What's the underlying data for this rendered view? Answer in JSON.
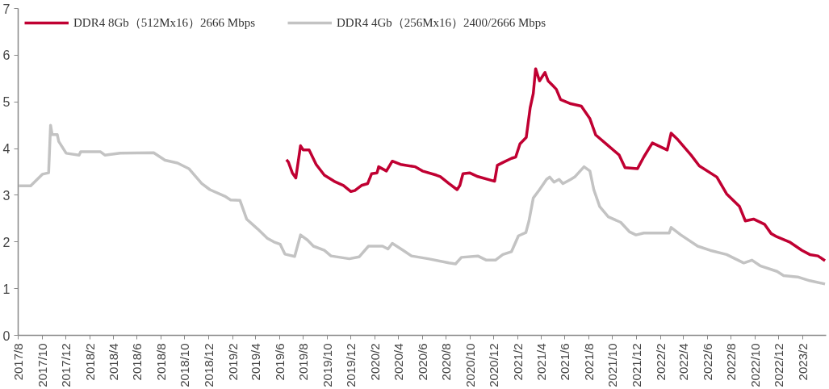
{
  "chart_data": {
    "type": "line",
    "legend": "top",
    "xlim": [
      "2017-08-01",
      "2023-04-01"
    ],
    "ylim": [
      0,
      7
    ],
    "yticks": [
      0,
      1,
      2,
      3,
      4,
      5,
      6,
      7
    ],
    "xticks": [
      {
        "value": "2017-08",
        "label": "2017/8"
      },
      {
        "value": "2017-10",
        "label": "2017/10"
      },
      {
        "value": "2017-12",
        "label": "2017/12"
      },
      {
        "value": "2018-02",
        "label": "2018/2"
      },
      {
        "value": "2018-04",
        "label": "2018/4"
      },
      {
        "value": "2018-06",
        "label": "2018/6"
      },
      {
        "value": "2018-08",
        "label": "2018/8"
      },
      {
        "value": "2018-10",
        "label": "2018/10"
      },
      {
        "value": "2018-12",
        "label": "2018/12"
      },
      {
        "value": "2019-02",
        "label": "2019/2"
      },
      {
        "value": "2019-04",
        "label": "2019/4"
      },
      {
        "value": "2019-06",
        "label": "2019/6"
      },
      {
        "value": "2019-08",
        "label": "2019/8"
      },
      {
        "value": "2019-10",
        "label": "2019/10"
      },
      {
        "value": "2019-12",
        "label": "2019/12"
      },
      {
        "value": "2020-02",
        "label": "2020/2"
      },
      {
        "value": "2020-04",
        "label": "2020/4"
      },
      {
        "value": "2020-06",
        "label": "2020/6"
      },
      {
        "value": "2020-08",
        "label": "2020/8"
      },
      {
        "value": "2020-10",
        "label": "2020/10"
      },
      {
        "value": "2020-12",
        "label": "2020/12"
      },
      {
        "value": "2021-02",
        "label": "2021/2"
      },
      {
        "value": "2021-04",
        "label": "2021/4"
      },
      {
        "value": "2021-06",
        "label": "2021/6"
      },
      {
        "value": "2021-08",
        "label": "2021/8"
      },
      {
        "value": "2021-10",
        "label": "2021/10"
      },
      {
        "value": "2021-12",
        "label": "2021/12"
      },
      {
        "value": "2022-02",
        "label": "2022/2"
      },
      {
        "value": "2022-04",
        "label": "2022/4"
      },
      {
        "value": "2022-06",
        "label": "2022/6"
      },
      {
        "value": "2022-08",
        "label": "2022/8"
      },
      {
        "value": "2022-10",
        "label": "2022/10"
      },
      {
        "value": "2022-12",
        "label": "2022/12"
      },
      {
        "value": "2023-02",
        "label": "2023/2"
      }
    ],
    "series": [
      {
        "name": "DDR4 8Gb（512Mx16）2666 Mbps",
        "color": "#c00032",
        "x": [
          "2019-06-19",
          "2019-06-24",
          "2019-07-04",
          "2019-07-13",
          "2019-07-25",
          "2019-08-01",
          "2019-08-16",
          "2019-09-03",
          "2019-09-24",
          "2019-10-19",
          "2019-11-12",
          "2019-12-01",
          "2019-12-11",
          "2019-12-28",
          "2020-01-13",
          "2020-01-23",
          "2020-02-06",
          "2020-02-10",
          "2020-03-01",
          "2020-03-16",
          "2020-04-06",
          "2020-05-14",
          "2020-06-01",
          "2020-07-07",
          "2020-07-17",
          "2020-08-08",
          "2020-08-29",
          "2020-09-05",
          "2020-09-13",
          "2020-09-30",
          "2020-10-21",
          "2020-12-03",
          "2020-12-10",
          "2020-12-24",
          "2021-01-15",
          "2021-01-26",
          "2021-02-06",
          "2021-02-22",
          "2021-03-04",
          "2021-03-12",
          "2021-03-18",
          "2021-03-28",
          "2021-04-11",
          "2021-04-19",
          "2021-05-02",
          "2021-05-10",
          "2021-05-21",
          "2021-06-16",
          "2021-07-13",
          "2021-08-04",
          "2021-08-19",
          "2021-09-16",
          "2021-10-18",
          "2021-11-02",
          "2021-12-04",
          "2021-12-20",
          "2022-01-11",
          "2022-02-18",
          "2022-02-28",
          "2022-03-15",
          "2022-04-20",
          "2022-05-11",
          "2022-06-25",
          "2022-07-20",
          "2022-08-22",
          "2022-09-06",
          "2022-09-27",
          "2022-10-25",
          "2022-11-11",
          "2022-11-26",
          "2022-12-28",
          "2023-01-29",
          "2023-02-18",
          "2023-03-11",
          "2023-03-29"
        ],
        "values": [
          3.76,
          3.71,
          3.48,
          3.37,
          4.06,
          3.97,
          3.97,
          3.66,
          3.43,
          3.3,
          3.21,
          3.08,
          3.1,
          3.21,
          3.25,
          3.46,
          3.48,
          3.61,
          3.52,
          3.73,
          3.66,
          3.61,
          3.52,
          3.43,
          3.4,
          3.25,
          3.12,
          3.21,
          3.46,
          3.48,
          3.4,
          3.3,
          3.64,
          3.7,
          3.79,
          3.82,
          4.1,
          4.24,
          4.87,
          5.18,
          5.71,
          5.45,
          5.63,
          5.45,
          5.34,
          5.27,
          5.05,
          4.96,
          4.91,
          4.64,
          4.29,
          4.09,
          3.86,
          3.59,
          3.57,
          3.82,
          4.12,
          3.97,
          4.33,
          4.21,
          3.86,
          3.63,
          3.39,
          3.03,
          2.76,
          2.45,
          2.49,
          2.38,
          2.18,
          2.11,
          2.0,
          1.82,
          1.73,
          1.7,
          1.6
        ]
      },
      {
        "name": "DDR4 4Gb（256Mx16）2400/2666 Mbps",
        "color": "#c3c3c3",
        "x": [
          "2017-08-03",
          "2017-09-02",
          "2017-10-02",
          "2017-10-18",
          "2017-10-23",
          "2017-10-27",
          "2017-11-09",
          "2017-11-13",
          "2017-12-02",
          "2018-01-04",
          "2018-01-08",
          "2018-02-28",
          "2018-03-11",
          "2018-04-19",
          "2018-07-14",
          "2018-08-12",
          "2018-09-13",
          "2018-10-12",
          "2018-11-14",
          "2018-12-05",
          "2019-01-12",
          "2019-01-27",
          "2019-02-20",
          "2019-03-09",
          "2019-04-06",
          "2019-05-01",
          "2019-05-18",
          "2019-06-03",
          "2019-06-15",
          "2019-07-10",
          "2019-07-25",
          "2019-08-12",
          "2019-08-27",
          "2019-09-24",
          "2019-10-11",
          "2019-11-27",
          "2019-12-22",
          "2020-01-15",
          "2020-02-20",
          "2020-03-05",
          "2020-03-16",
          "2020-04-13",
          "2020-05-04",
          "2020-06-16",
          "2020-08-08",
          "2020-08-25",
          "2020-09-09",
          "2020-10-21",
          "2020-11-12",
          "2020-12-05",
          "2020-12-24",
          "2021-01-15",
          "2021-02-02",
          "2021-02-21",
          "2021-03-01",
          "2021-03-12",
          "2021-03-28",
          "2021-04-15",
          "2021-04-23",
          "2021-05-04",
          "2021-05-17",
          "2021-05-27",
          "2021-06-16",
          "2021-06-26",
          "2021-07-20",
          "2021-08-04",
          "2021-08-14",
          "2021-08-29",
          "2021-09-20",
          "2021-10-22",
          "2021-11-13",
          "2021-11-30",
          "2021-12-20",
          "2022-02-23",
          "2022-02-28",
          "2022-03-25",
          "2022-05-07",
          "2022-06-08",
          "2022-07-20",
          "2022-09-02",
          "2022-09-23",
          "2022-10-14",
          "2022-11-26",
          "2022-12-13",
          "2023-01-18",
          "2023-02-18",
          "2023-03-29"
        ],
        "values": [
          3.2,
          3.2,
          3.45,
          3.48,
          4.5,
          4.3,
          4.3,
          4.15,
          3.9,
          3.86,
          3.93,
          3.93,
          3.86,
          3.9,
          3.91,
          3.75,
          3.69,
          3.57,
          3.25,
          3.12,
          2.98,
          2.9,
          2.89,
          2.49,
          2.28,
          2.08,
          2.0,
          1.95,
          1.74,
          1.69,
          2.15,
          2.04,
          1.91,
          1.82,
          1.7,
          1.64,
          1.68,
          1.91,
          1.91,
          1.85,
          1.97,
          1.82,
          1.7,
          1.64,
          1.55,
          1.53,
          1.67,
          1.7,
          1.61,
          1.61,
          1.73,
          1.79,
          2.13,
          2.2,
          2.45,
          2.94,
          3.12,
          3.34,
          3.39,
          3.28,
          3.34,
          3.25,
          3.34,
          3.39,
          3.61,
          3.52,
          3.12,
          2.76,
          2.54,
          2.42,
          2.22,
          2.15,
          2.19,
          2.19,
          2.31,
          2.15,
          1.91,
          1.82,
          1.73,
          1.55,
          1.61,
          1.49,
          1.37,
          1.28,
          1.25,
          1.17,
          1.1
        ]
      }
    ]
  }
}
